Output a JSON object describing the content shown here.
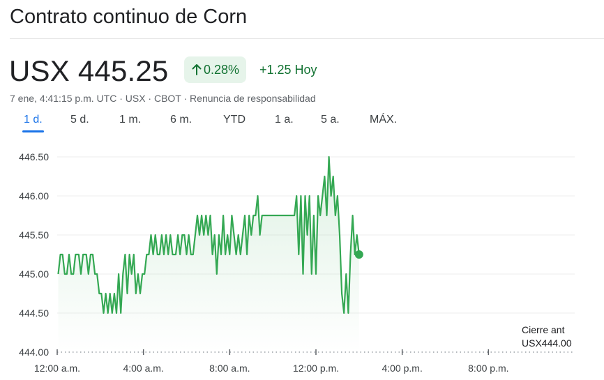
{
  "header": {
    "title": "Contrato continuo de Corn"
  },
  "quote": {
    "price": "USX 445.25",
    "change_percent": "0.28%",
    "change_abs": "+1.25 Hoy",
    "meta": "7 ene, 4:41:15 p.m. UTC · USX · CBOT · Renuncia de responsabilidad",
    "trend_color": "#34a853",
    "badge_bg": "#e6f4ea"
  },
  "range_tabs": [
    {
      "label": "1 d.",
      "active": true
    },
    {
      "label": "5 d.",
      "active": false
    },
    {
      "label": "1 m.",
      "active": false
    },
    {
      "label": "6 m.",
      "active": false
    },
    {
      "label": "YTD",
      "active": false
    },
    {
      "label": "1 a.",
      "active": false
    },
    {
      "label": "5 a.",
      "active": false
    },
    {
      "label": "MÁX.",
      "active": false
    }
  ],
  "previous_close": {
    "label": "Cierre ant",
    "value": "USX444.00"
  },
  "chart_data": {
    "type": "line",
    "x_unit": "hours since 12:00 a.m.",
    "xlim": [
      0,
      24
    ],
    "ylim": [
      444.0,
      446.75
    ],
    "y_ticks": [
      "444.00",
      "444.50",
      "445.00",
      "445.50",
      "446.00",
      "446.50"
    ],
    "y_tick_values": [
      444.0,
      444.5,
      445.0,
      445.5,
      446.0,
      446.5
    ],
    "x_ticks": [
      "12:00 a.m.",
      "4:00 a.m.",
      "8:00 a.m.",
      "12:00 p.m.",
      "4:00 p.m.",
      "8:00 p.m."
    ],
    "x_tick_values": [
      0,
      4,
      8,
      12,
      16,
      20
    ],
    "previous_close": 444.0,
    "grid": true,
    "series": [
      {
        "color": "#34a853",
        "points": [
          [
            0.05,
            445.0
          ],
          [
            0.15,
            445.25
          ],
          [
            0.25,
            445.25
          ],
          [
            0.35,
            445.0
          ],
          [
            0.45,
            445.0
          ],
          [
            0.55,
            445.25
          ],
          [
            0.65,
            445.0
          ],
          [
            0.75,
            445.0
          ],
          [
            0.85,
            445.25
          ],
          [
            1.0,
            445.25
          ],
          [
            1.1,
            445.0
          ],
          [
            1.2,
            445.25
          ],
          [
            1.35,
            445.25
          ],
          [
            1.45,
            445.0
          ],
          [
            1.55,
            445.25
          ],
          [
            1.65,
            445.25
          ],
          [
            1.75,
            445.0
          ],
          [
            1.85,
            445.0
          ],
          [
            1.95,
            444.75
          ],
          [
            2.05,
            444.75
          ],
          [
            2.15,
            444.5
          ],
          [
            2.25,
            444.75
          ],
          [
            2.35,
            444.5
          ],
          [
            2.45,
            444.75
          ],
          [
            2.55,
            444.5
          ],
          [
            2.65,
            444.75
          ],
          [
            2.75,
            444.5
          ],
          [
            2.85,
            445.0
          ],
          [
            2.95,
            444.5
          ],
          [
            3.05,
            445.0
          ],
          [
            3.15,
            445.25
          ],
          [
            3.25,
            444.75
          ],
          [
            3.35,
            445.25
          ],
          [
            3.45,
            445.0
          ],
          [
            3.55,
            445.25
          ],
          [
            3.65,
            444.75
          ],
          [
            3.75,
            445.0
          ],
          [
            3.85,
            444.75
          ],
          [
            3.95,
            445.0
          ],
          [
            4.05,
            445.0
          ],
          [
            4.15,
            445.25
          ],
          [
            4.25,
            445.25
          ],
          [
            4.35,
            445.5
          ],
          [
            4.45,
            445.25
          ],
          [
            4.55,
            445.5
          ],
          [
            4.65,
            445.25
          ],
          [
            4.75,
            445.25
          ],
          [
            4.85,
            445.5
          ],
          [
            4.95,
            445.25
          ],
          [
            5.05,
            445.5
          ],
          [
            5.15,
            445.25
          ],
          [
            5.25,
            445.5
          ],
          [
            5.35,
            445.25
          ],
          [
            5.5,
            445.25
          ],
          [
            5.6,
            445.5
          ],
          [
            5.7,
            445.25
          ],
          [
            5.8,
            445.5
          ],
          [
            5.9,
            445.5
          ],
          [
            6.0,
            445.25
          ],
          [
            6.1,
            445.5
          ],
          [
            6.2,
            445.25
          ],
          [
            6.3,
            445.25
          ],
          [
            6.4,
            445.5
          ],
          [
            6.5,
            445.75
          ],
          [
            6.6,
            445.5
          ],
          [
            6.7,
            445.75
          ],
          [
            6.8,
            445.5
          ],
          [
            6.9,
            445.75
          ],
          [
            7.0,
            445.5
          ],
          [
            7.1,
            445.75
          ],
          [
            7.2,
            445.25
          ],
          [
            7.3,
            445.5
          ],
          [
            7.4,
            445.0
          ],
          [
            7.5,
            445.5
          ],
          [
            7.6,
            445.25
          ],
          [
            7.7,
            445.75
          ],
          [
            7.8,
            445.25
          ],
          [
            7.9,
            445.5
          ],
          [
            8.0,
            445.25
          ],
          [
            8.1,
            445.75
          ],
          [
            8.2,
            445.5
          ],
          [
            8.3,
            445.25
          ],
          [
            8.4,
            445.5
          ],
          [
            8.5,
            445.25
          ],
          [
            8.6,
            445.5
          ],
          [
            8.7,
            445.75
          ],
          [
            8.8,
            445.25
          ],
          [
            8.9,
            445.75
          ],
          [
            9.0,
            445.5
          ],
          [
            9.1,
            445.75
          ],
          [
            9.2,
            445.75
          ],
          [
            9.3,
            446.0
          ],
          [
            9.4,
            445.5
          ],
          [
            9.5,
            445.75
          ],
          [
            9.6,
            445.75
          ],
          [
            9.7,
            445.75
          ],
          [
            9.8,
            445.75
          ],
          [
            9.9,
            445.75
          ],
          [
            10.0,
            445.75
          ],
          [
            10.1,
            445.75
          ],
          [
            10.2,
            445.75
          ],
          [
            10.3,
            445.75
          ],
          [
            10.4,
            445.75
          ],
          [
            10.5,
            445.75
          ],
          [
            10.6,
            445.75
          ],
          [
            10.7,
            445.75
          ],
          [
            10.8,
            445.75
          ],
          [
            10.9,
            445.75
          ],
          [
            11.0,
            445.75
          ],
          [
            11.1,
            446.0
          ],
          [
            11.2,
            445.25
          ],
          [
            11.3,
            446.0
          ],
          [
            11.4,
            445.0
          ],
          [
            11.5,
            446.0
          ],
          [
            11.6,
            445.5
          ],
          [
            11.7,
            446.0
          ],
          [
            11.8,
            445.0
          ],
          [
            11.9,
            445.75
          ],
          [
            12.0,
            445.0
          ],
          [
            12.1,
            446.0
          ],
          [
            12.2,
            445.75
          ],
          [
            12.3,
            446.0
          ],
          [
            12.4,
            446.25
          ],
          [
            12.5,
            445.75
          ],
          [
            12.6,
            446.5
          ],
          [
            12.7,
            446.0
          ],
          [
            12.8,
            446.25
          ],
          [
            12.9,
            445.75
          ],
          [
            13.0,
            446.0
          ],
          [
            13.1,
            445.5
          ],
          [
            13.2,
            444.75
          ],
          [
            13.3,
            444.5
          ],
          [
            13.4,
            445.0
          ],
          [
            13.5,
            444.5
          ],
          [
            13.6,
            445.25
          ],
          [
            13.7,
            445.75
          ],
          [
            13.8,
            445.25
          ],
          [
            13.9,
            445.5
          ],
          [
            14.0,
            445.25
          ]
        ]
      }
    ]
  }
}
